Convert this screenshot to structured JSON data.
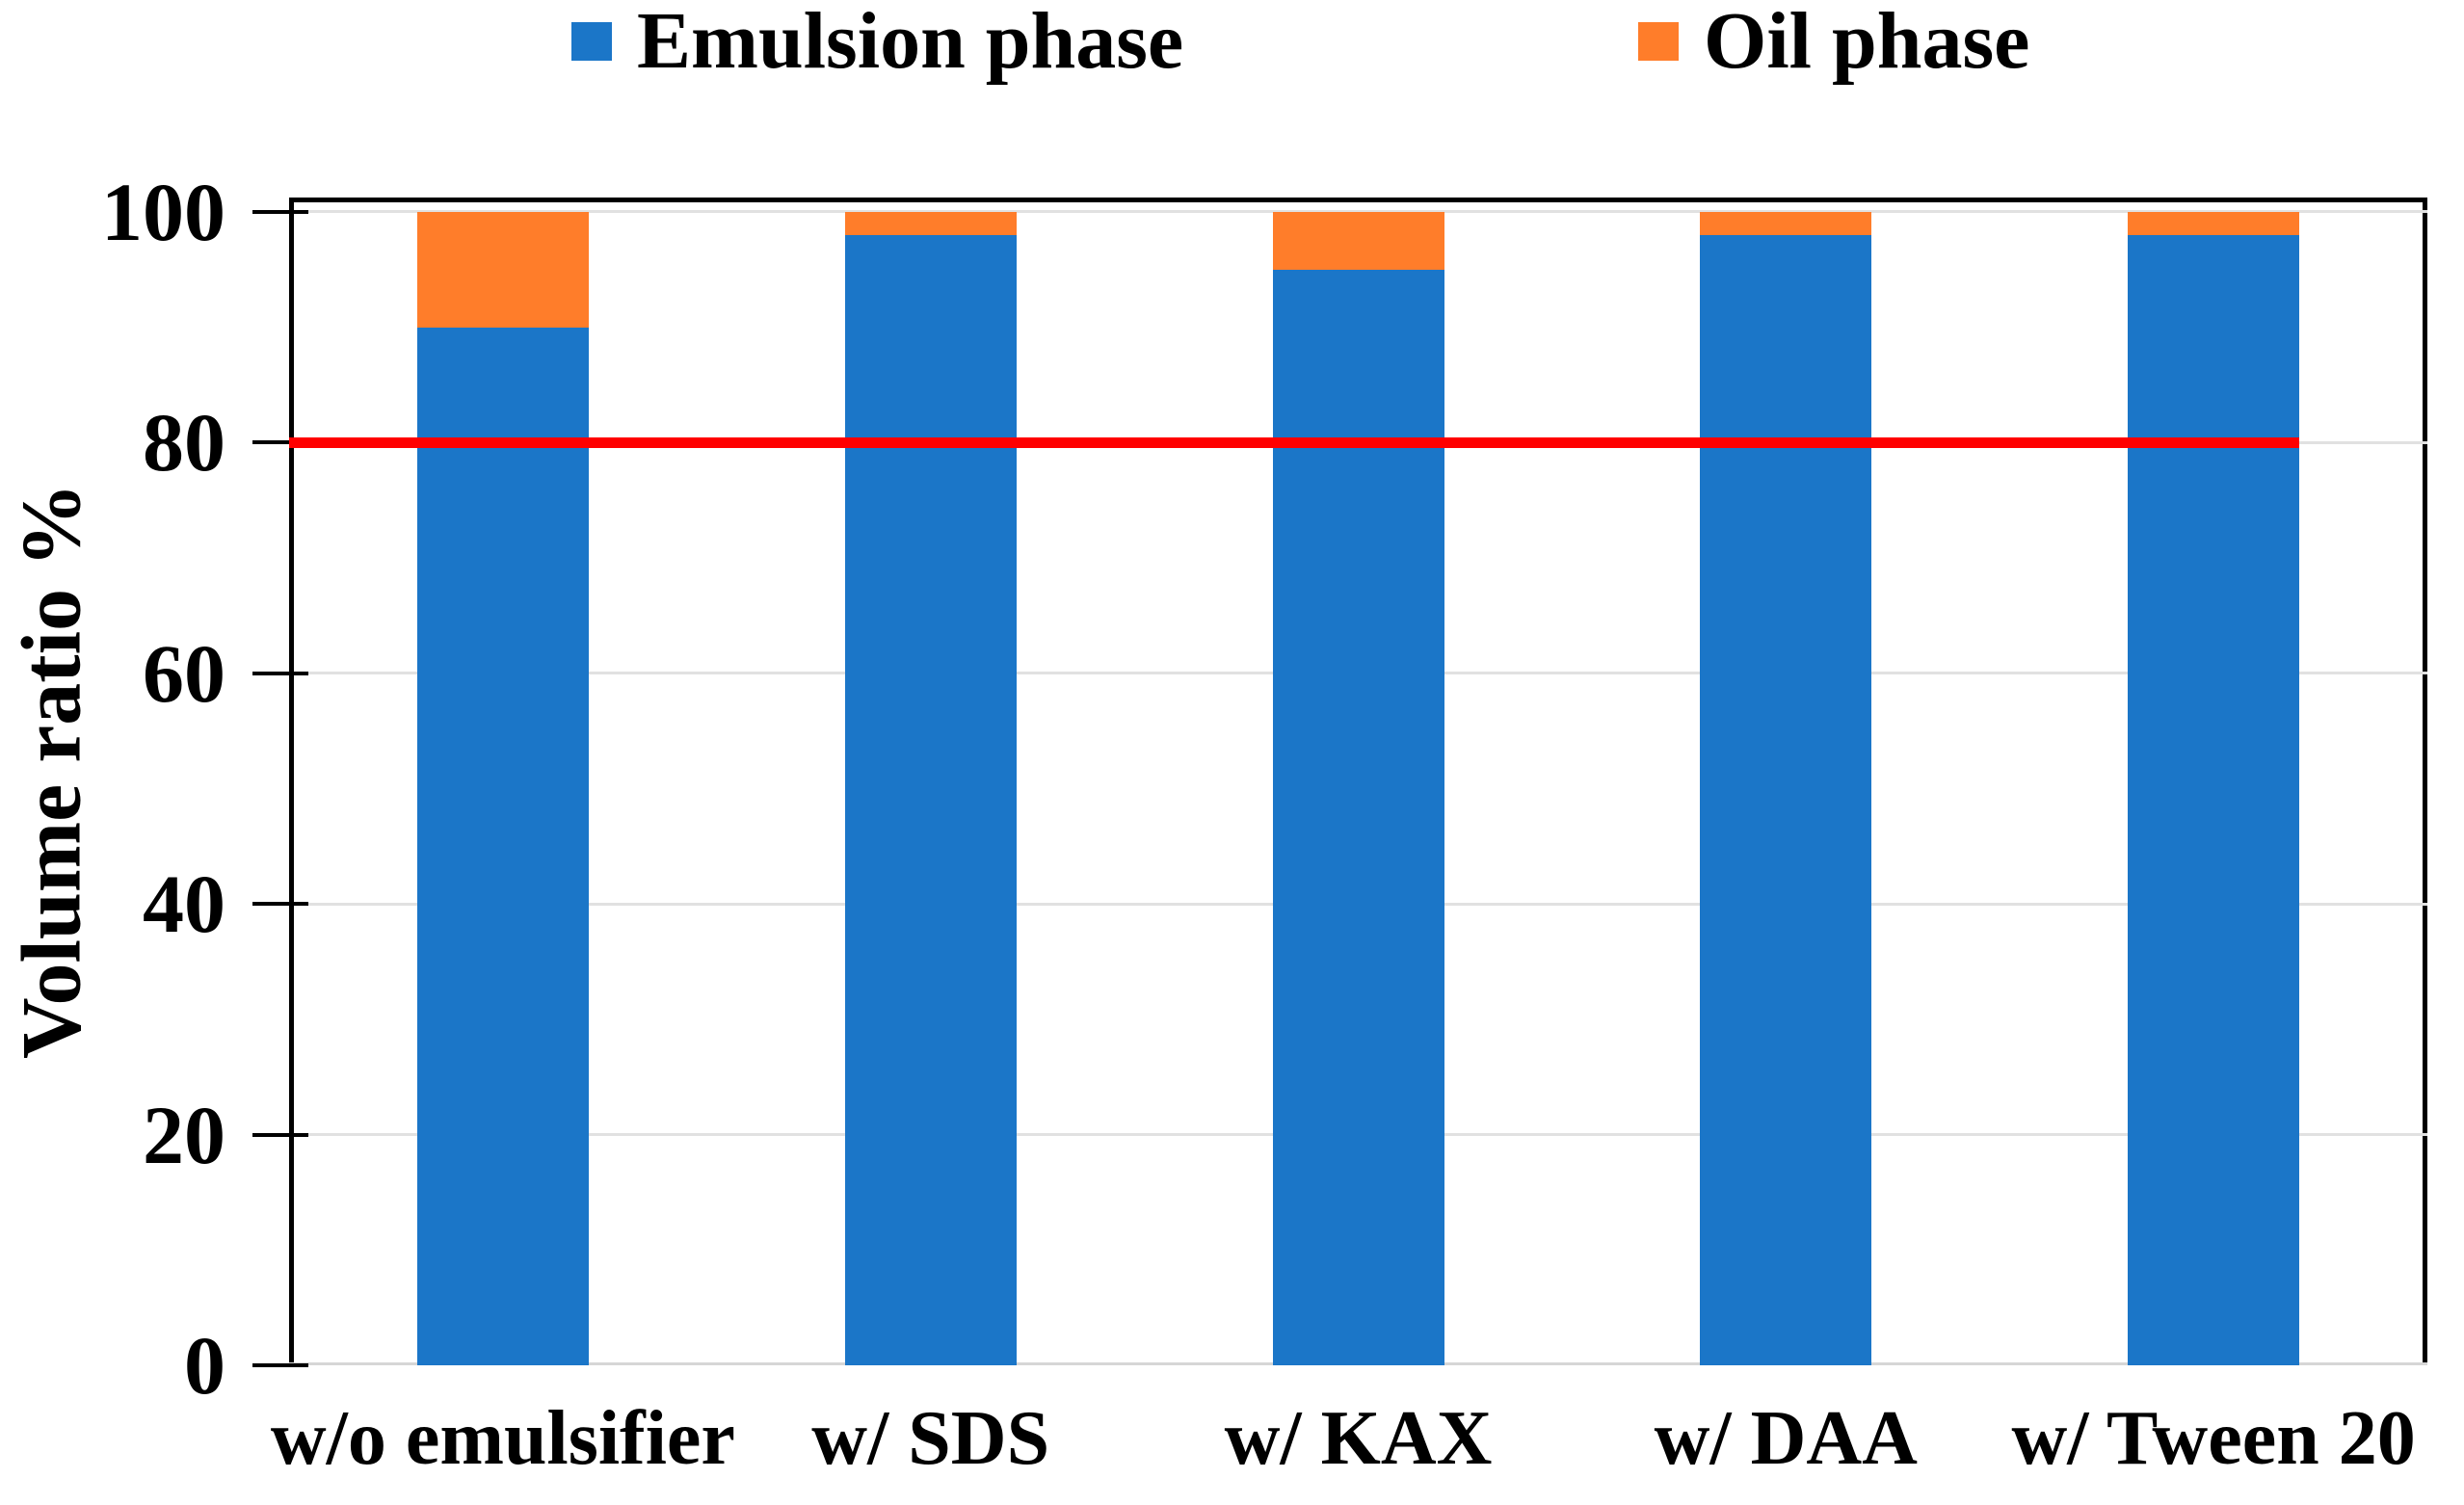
{
  "chart_data": {
    "type": "bar",
    "stacked": true,
    "categories": [
      "w/o emulsifier",
      "w/ SDS",
      "w/ KAX",
      "w/ DAA",
      "w/ Tween 20"
    ],
    "series": [
      {
        "name": "Emulsion phase",
        "color": "#1B76C8",
        "values": [
          90,
          98,
          95,
          98,
          98
        ]
      },
      {
        "name": "Oil phase",
        "color": "#FF7D2A",
        "values": [
          10,
          2,
          5,
          2,
          2
        ]
      }
    ],
    "ylabel": "Volume ratio %",
    "yticks": [
      0,
      20,
      40,
      60,
      80,
      100
    ],
    "ylim": [
      0,
      101.25
    ],
    "grid": true,
    "legend_position": "top",
    "reference_line": {
      "value": 80,
      "color": "#FF0000"
    }
  },
  "colors": {
    "background": "#FFFFFF",
    "axis": "#000000",
    "gridline": "#E1E1E1",
    "baseline": "#D6D6D6"
  }
}
